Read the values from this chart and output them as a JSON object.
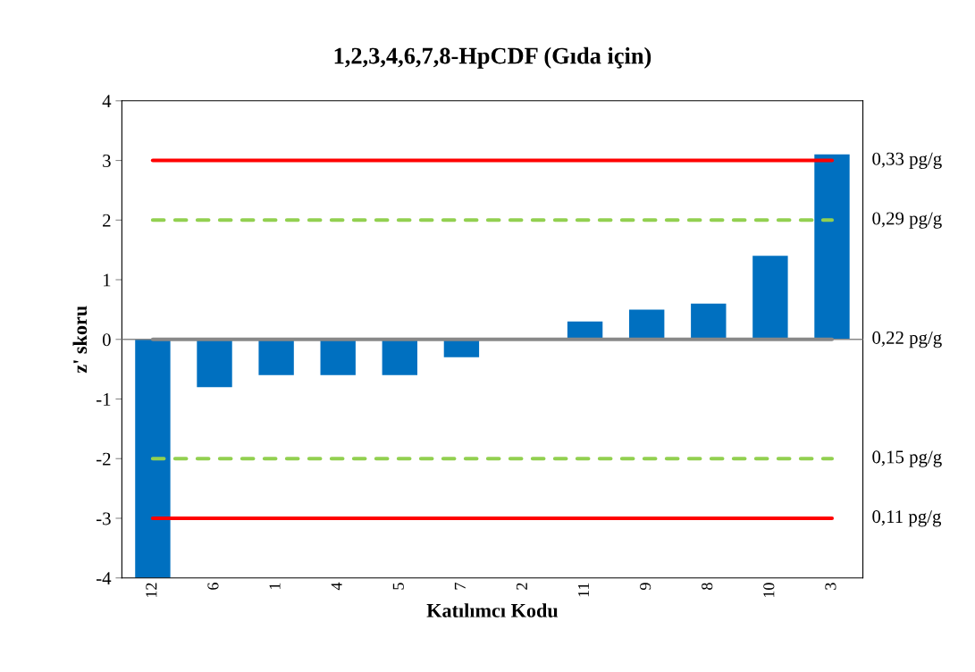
{
  "chart_data": {
    "type": "bar",
    "title": "1,2,3,4,6,7,8-HpCDF (Gıda için)",
    "xlabel": "Katılımcı Kodu",
    "ylabel": "z' skoru",
    "categories": [
      "12",
      "6",
      "1",
      "4",
      "5",
      "7",
      "2",
      "11",
      "9",
      "8",
      "10",
      "3"
    ],
    "values": [
      -4.0,
      -0.8,
      -0.6,
      -0.6,
      -0.6,
      -0.3,
      0,
      0.3,
      0.5,
      0.6,
      1.4,
      3.1
    ],
    "color": "#0070c0",
    "ylim": [
      -4,
      4
    ],
    "yticks": [
      -4,
      -3,
      -2,
      -1,
      0,
      1,
      2,
      3,
      4
    ],
    "ref_lines": [
      {
        "axis": "y",
        "value": 3,
        "label": "0,33 pg/g",
        "color": "#ff0000",
        "line_style": "solid"
      },
      {
        "axis": "y",
        "value": 2,
        "label": "0,29 pg/g",
        "color": "#92d050",
        "line_style": "dashed"
      },
      {
        "axis": "y",
        "value": 0,
        "label": "0,22 pg/g",
        "color": "#888888",
        "line_style": "solid"
      },
      {
        "axis": "y",
        "value": -2,
        "label": "0,15 pg/g",
        "color": "#92d050",
        "line_style": "dashed"
      },
      {
        "axis": "y",
        "value": -3,
        "label": "0,11 pg/g",
        "color": "#ff0000",
        "line_style": "solid"
      }
    ],
    "grid": false,
    "legend": false
  }
}
